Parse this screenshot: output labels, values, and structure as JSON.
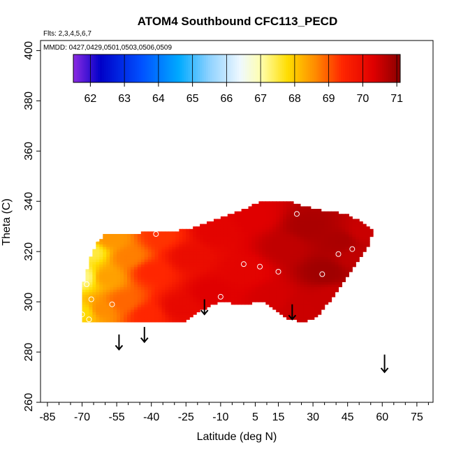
{
  "chart_data": {
    "type": "heatmap",
    "title": "ATOM4 Southbound CFC113_PECD",
    "flights_note": "Flts: 2,3,4,5,6,7",
    "dates_note": "MMDD: 0427,0429,0501,0503,0506,0509",
    "xlabel": "Latitude (deg N)",
    "ylabel": "Theta (C)",
    "xlim": [
      -88,
      82
    ],
    "ylim": [
      260,
      404
    ],
    "x_ticks": [
      -85,
      -70,
      -55,
      -40,
      -25,
      -10,
      5,
      15,
      30,
      45,
      60,
      75
    ],
    "y_ticks": [
      260,
      280,
      300,
      320,
      340,
      360,
      380,
      400
    ],
    "colorbar": {
      "min": 61.5,
      "max": 71.1,
      "ticks": [
        62,
        63,
        64,
        65,
        66,
        67,
        68,
        69,
        70,
        71
      ],
      "stops": [
        {
          "v": 61.5,
          "color": "#8c2be2"
        },
        {
          "v": 62.3,
          "color": "#0000c8"
        },
        {
          "v": 63.5,
          "color": "#0050ff"
        },
        {
          "v": 64.6,
          "color": "#00aaff"
        },
        {
          "v": 65.5,
          "color": "#8fd2ff"
        },
        {
          "v": 66.4,
          "color": "#eef8ff"
        },
        {
          "v": 67.0,
          "color": "#ffffb0"
        },
        {
          "v": 67.8,
          "color": "#ffdd00"
        },
        {
          "v": 68.6,
          "color": "#ff8c00"
        },
        {
          "v": 69.4,
          "color": "#ff2600"
        },
        {
          "v": 70.3,
          "color": "#e00000"
        },
        {
          "v": 71.1,
          "color": "#8a0000"
        }
      ]
    },
    "field_region": [
      [
        -70,
        292
      ],
      [
        -70,
        305
      ],
      [
        -67,
        316
      ],
      [
        -64,
        323
      ],
      [
        -60,
        327
      ],
      [
        -30,
        328
      ],
      [
        -20,
        330
      ],
      [
        -8,
        334
      ],
      [
        0,
        337
      ],
      [
        8,
        340
      ],
      [
        20,
        340
      ],
      [
        30,
        337
      ],
      [
        45,
        335
      ],
      [
        56,
        329
      ],
      [
        54,
        322
      ],
      [
        42,
        306
      ],
      [
        32,
        294
      ],
      [
        27,
        292
      ],
      [
        20,
        293
      ],
      [
        15,
        296
      ],
      [
        8,
        300
      ],
      [
        0,
        299
      ],
      [
        -10,
        300
      ],
      [
        -20,
        296
      ],
      [
        -25,
        292
      ]
    ],
    "field_samples": [
      {
        "x": -69,
        "y": 296,
        "v": 67.8
      },
      {
        "x": -69,
        "y": 310,
        "v": 67.2
      },
      {
        "x": -66,
        "y": 320,
        "v": 67.5
      },
      {
        "x": -62,
        "y": 297,
        "v": 68.6
      },
      {
        "x": -60,
        "y": 310,
        "v": 68.4
      },
      {
        "x": -58,
        "y": 325,
        "v": 68.5
      },
      {
        "x": -52,
        "y": 300,
        "v": 68.9
      },
      {
        "x": -50,
        "y": 318,
        "v": 68.7
      },
      {
        "x": -42,
        "y": 295,
        "v": 69.4
      },
      {
        "x": -40,
        "y": 312,
        "v": 69.4
      },
      {
        "x": -36,
        "y": 326,
        "v": 69.3
      },
      {
        "x": -28,
        "y": 298,
        "v": 70.1
      },
      {
        "x": -24,
        "y": 318,
        "v": 70.0
      },
      {
        "x": -14,
        "y": 304,
        "v": 70.3
      },
      {
        "x": -12,
        "y": 328,
        "v": 70.2
      },
      {
        "x": 0,
        "y": 312,
        "v": 70.2
      },
      {
        "x": 5,
        "y": 334,
        "v": 70.3
      },
      {
        "x": 12,
        "y": 302,
        "v": 70.4
      },
      {
        "x": 18,
        "y": 322,
        "v": 70.6
      },
      {
        "x": 25,
        "y": 298,
        "v": 70.5
      },
      {
        "x": 28,
        "y": 330,
        "v": 70.8
      },
      {
        "x": 35,
        "y": 312,
        "v": 70.9
      },
      {
        "x": 42,
        "y": 324,
        "v": 70.8
      },
      {
        "x": 48,
        "y": 318,
        "v": 70.6
      },
      {
        "x": 52,
        "y": 328,
        "v": 70.5
      },
      {
        "x": 38,
        "y": 302,
        "v": 70.5
      }
    ],
    "sample_points": [
      {
        "x": -70,
        "y": 295
      },
      {
        "x": -67,
        "y": 293
      },
      {
        "x": -68,
        "y": 307
      },
      {
        "x": -66,
        "y": 301
      },
      {
        "x": -64,
        "y": 325
      },
      {
        "x": -57,
        "y": 299
      },
      {
        "x": -38,
        "y": 327
      },
      {
        "x": -10,
        "y": 302
      },
      {
        "x": 0,
        "y": 315
      },
      {
        "x": 7,
        "y": 314
      },
      {
        "x": 15,
        "y": 312
      },
      {
        "x": 23,
        "y": 335
      },
      {
        "x": 34,
        "y": 311
      },
      {
        "x": 41,
        "y": 319
      },
      {
        "x": 47,
        "y": 321
      },
      {
        "x": 53,
        "y": 333
      }
    ],
    "arrows": [
      {
        "x": -54,
        "y_top": 287,
        "y_bottom": 281
      },
      {
        "x": -43,
        "y_top": 290,
        "y_bottom": 284
      },
      {
        "x": -17,
        "y_top": 301,
        "y_bottom": 295
      },
      {
        "x": 21,
        "y_top": 299,
        "y_bottom": 293
      },
      {
        "x": 61,
        "y_top": 279,
        "y_bottom": 272
      }
    ],
    "grid": false
  }
}
